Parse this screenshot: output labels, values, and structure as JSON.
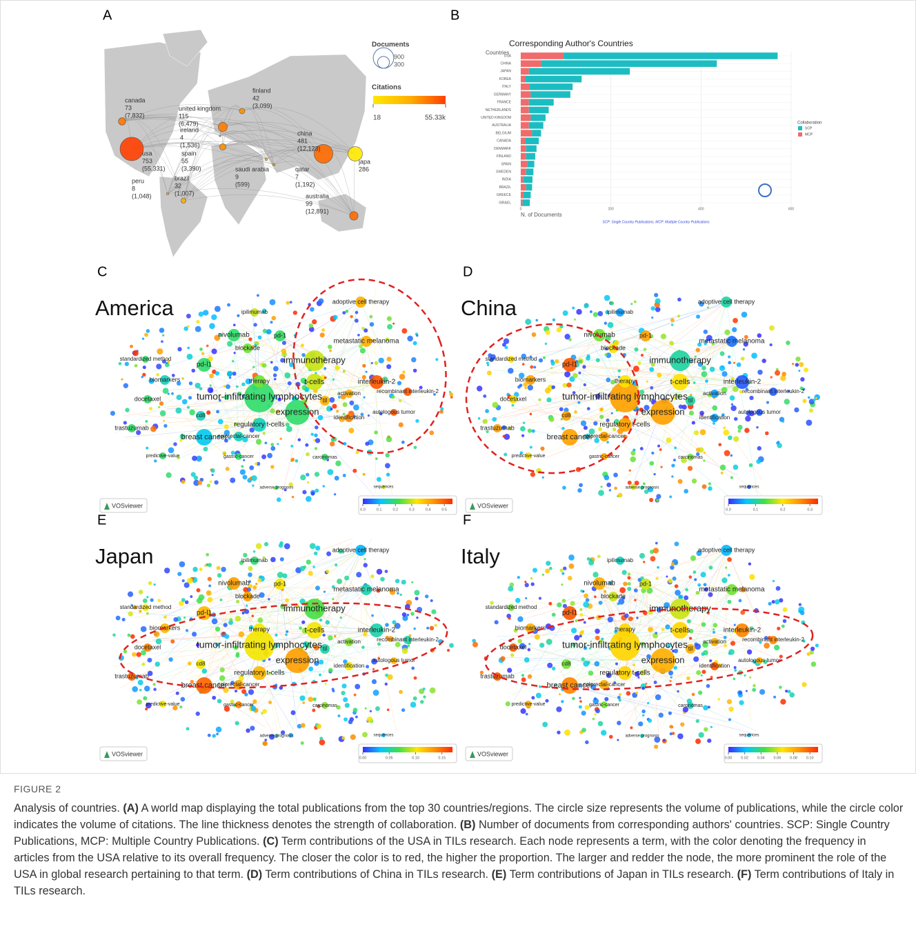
{
  "chart_data": [
    {
      "type": "bubble-map",
      "panel_label": "A",
      "countries": [
        "canada",
        "united kingdom",
        "finland",
        "ireland",
        "usa",
        "spain",
        "saudi arabia",
        "qatar",
        "china",
        "japa",
        "peru",
        "brazil",
        "australia"
      ],
      "documents": [
        73,
        115,
        42,
        4,
        753,
        55,
        9,
        7,
        481,
        286,
        8,
        32,
        99
      ],
      "citations": [
        7832,
        6479,
        3099,
        1536,
        55331,
        3390,
        599,
        1192,
        12123,
        null,
        1048,
        1007,
        12891
      ],
      "citation_labels": [
        "(7,832)",
        "(6,479)",
        "(3,099)",
        "(1,536)",
        "(55,331)",
        "(3,390)",
        "(599)",
        "(1,192)",
        "(12,123)",
        null,
        "(1,048)",
        "(1,007)",
        "(12,891)"
      ],
      "size_legend_title": "Documents",
      "size_legend": [
        900,
        300
      ],
      "color_legend_title": "Citations",
      "color_ticks": [
        18,
        {
          "value": 55330,
          "label": "55.33k"
        }
      ],
      "colors": [
        "#ffe800",
        "#ffb000",
        "#ff4000"
      ]
    },
    {
      "type": "bar",
      "orientation": "horizontal",
      "stacked": true,
      "panel_label": "B",
      "title": "Corresponding Author's Countries",
      "y_label": "Countries",
      "x_label": "N. of Documents",
      "categories": [
        "USA",
        "CHINA",
        "JAPAN",
        "KOREA",
        "ITALY",
        "GERMANY",
        "FRANCE",
        "NETHERLANDS",
        "UNITED KINGDOM",
        "AUSTRALIA",
        "BELGIUM",
        "CANADA",
        "DENMARK",
        "FINLAND",
        "SPAIN",
        "SWEDEN",
        "INDIA",
        "BRAZIL",
        "GREECE",
        "ISRAEL"
      ],
      "series": [
        {
          "name": "SCP",
          "color": "#1cbdc2",
          "values": [
            475,
            390,
            224,
            125,
            95,
            88,
            55,
            44,
            33,
            32,
            20,
            30,
            23,
            20,
            16,
            16,
            21,
            13,
            16,
            16
          ]
        },
        {
          "name": "MCP",
          "color": "#f06b6b",
          "values": [
            95,
            45,
            18,
            10,
            20,
            22,
            18,
            18,
            22,
            18,
            25,
            10,
            12,
            12,
            14,
            12,
            5,
            12,
            6,
            4
          ]
        }
      ],
      "xlim": [
        0,
        600
      ],
      "xticks": [
        0,
        200,
        400,
        600
      ],
      "grid": true,
      "legend_title": "Collaboration",
      "footnote": "SCP: Single Country Publications, MCP: Multiple Country Publications"
    },
    {
      "type": "network",
      "panel_label": "C",
      "region": "America",
      "logo": "VOSviewer",
      "values": [
        0.2,
        0.2,
        0.3,
        0.12,
        0.15,
        0.3,
        0.2,
        0.2,
        0.2,
        0.4,
        0.4,
        0.5,
        0.5,
        0.2,
        0.2,
        0.15,
        0.3,
        0.25,
        0.2,
        0.15,
        0.25,
        0.15,
        0.4,
        0.4,
        0.45,
        0.5,
        0.2,
        0.2,
        0.2,
        0.3,
        0.2
      ],
      "clim": [
        0,
        0.55
      ],
      "cticks": [
        {
          "value": 0,
          "label": "0.0"
        },
        0.1,
        0.2,
        0.3,
        0.4,
        0.5
      ]
    },
    {
      "type": "network",
      "panel_label": "D",
      "region": "China",
      "logo": "VOSviewer",
      "values": [
        0.25,
        0.25,
        0.1,
        0.25,
        0.25,
        0.2,
        0.3,
        0.15,
        0.25,
        0.03,
        0.1,
        0.02,
        0.02,
        0.25,
        0.2,
        0.25,
        0.05,
        0.2,
        0.2,
        0.25,
        0.2,
        0.25,
        0.1,
        0.05,
        0.05,
        0.02,
        0.15,
        0.25,
        0.2,
        0.02,
        0.1
      ],
      "clim": [
        0,
        0.33
      ],
      "cticks": [
        {
          "value": 0,
          "label": "0.0"
        },
        0.1,
        0.2,
        0.3
      ]
    },
    {
      "type": "network",
      "panel_label": "E",
      "region": "Japan",
      "logo": "VOSviewer",
      "values": [
        0.1,
        0.13,
        0.07,
        0.15,
        0.12,
        0.1,
        0.12,
        0.13,
        0.1,
        0.05,
        0.03,
        0.05,
        0.05,
        0.15,
        0.14,
        0.13,
        0.06,
        0.13,
        0.1,
        0.12,
        0.1,
        0.1,
        0.05,
        0.08,
        0.1,
        0.12,
        0.08,
        0.14,
        0.1,
        0.03,
        0.05
      ],
      "clim": [
        0,
        0.17
      ],
      "cticks": [
        {
          "value": 0,
          "label": "0.00"
        },
        0.05,
        {
          "value": 0.1,
          "label": "0.10"
        },
        0.15
      ]
    },
    {
      "type": "network",
      "panel_label": "F",
      "region": "Italy",
      "logo": "VOSviewer",
      "values": [
        0.07,
        0.08,
        0.06,
        0.09,
        0.07,
        0.07,
        0.1,
        0.08,
        0.06,
        0.05,
        0.02,
        0.09,
        0.09,
        0.1,
        0.1,
        0.08,
        0.03,
        0.06,
        0.05,
        0.08,
        0.07,
        0.05,
        0.08,
        0.08,
        0.1,
        0.08,
        0.03,
        0.05,
        0.08,
        0.02,
        0.03
      ],
      "clim": [
        0,
        0.11
      ],
      "cticks": [
        {
          "value": 0,
          "label": "0.00"
        },
        0.02,
        0.04,
        0.06,
        0.08,
        {
          "value": 0.1,
          "label": "0.10"
        }
      ]
    }
  ],
  "terms": [
    "tumor-infiltrating lymphocytes",
    "expression",
    "immunotherapy",
    "breast cancer",
    "regulatory t-cells",
    "t-cells",
    "pd-l1",
    "nivolumab",
    "pd-1",
    "metastatic melanoma",
    "adoptive cell therapy",
    "interleukin-2",
    "recombinant interleukin-2",
    "trastuzumab",
    "docetaxel",
    "colorectal-cancer",
    "ipilimumab",
    "blockade",
    "standardized method",
    "biomarkers",
    "therapy",
    "cd8",
    "til",
    "activation",
    "identification",
    "autologous tumor",
    "carcinomas",
    "gastric-cancer",
    "predictive-value",
    "sequences",
    "adverse prognosis"
  ],
  "colormap": [
    "#3a2cff",
    "#00c8ff",
    "#3ee04a",
    "#ffe600",
    "#ff9000",
    "#ff2a00"
  ],
  "caption": {
    "label": "FIGURE 2",
    "intro": "Analysis of countries.",
    "items": [
      {
        "tag": "(A)",
        "text": "A world map displaying the total publications from the top 30 countries/regions. The circle size represents the volume of publications, while the circle color indicates the volume of citations. The line thickness denotes the strength of collaboration."
      },
      {
        "tag": "(B)",
        "text": "Number of documents from corresponding authors' countries. SCP: Single Country Publications, MCP: Multiple Country Publications."
      },
      {
        "tag": "(C)",
        "text": "Term contributions of the USA in TILs research. Each node represents a term, with the color denoting the frequency in articles from the USA relative to its overall frequency. The closer the color is to red, the higher the proportion. The larger and redder the node, the more prominent the role of the USA in global research pertaining to that term."
      },
      {
        "tag": "(D)",
        "text": "Term contributions of China in TILs research."
      },
      {
        "tag": "(E)",
        "text": "Term contributions of Japan in TILs research."
      },
      {
        "tag": "(F)",
        "text": "Term contributions of Italy in TILs research."
      }
    ]
  }
}
